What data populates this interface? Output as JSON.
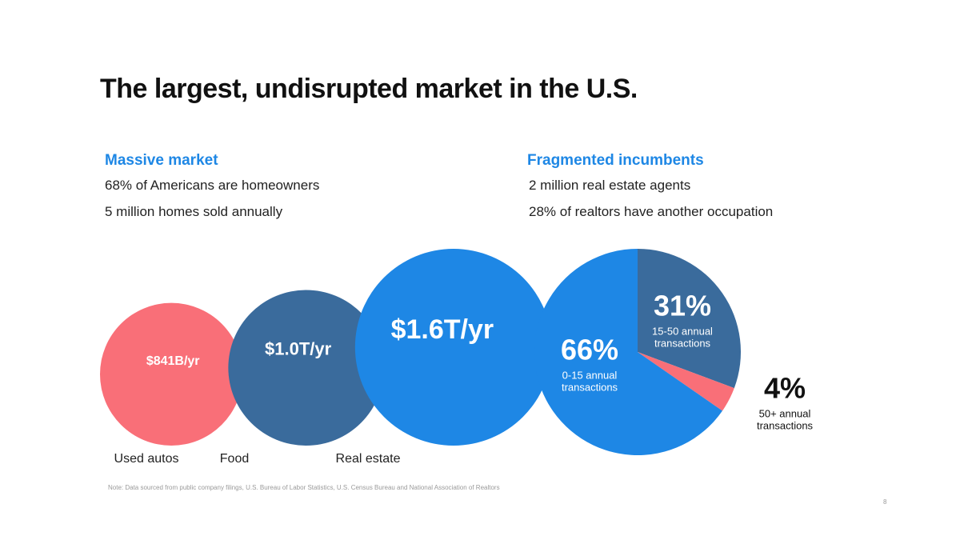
{
  "slide": {
    "title": "The largest, undisrupted market in the U.S.",
    "footnote": "Note:  Data sourced from public company filings, U.S. Bureau of Labor Statistics, U.S. Census Bureau and National Association of Realtors",
    "page_number": "8"
  },
  "left_section": {
    "heading": "Massive market",
    "stats": [
      "68% of Americans are homeowners",
      "5 million homes sold annually"
    ]
  },
  "right_section": {
    "heading": "Fragmented incumbents",
    "stats": [
      "2 million real estate agents",
      "28% of realtors have another occupation"
    ]
  },
  "colors": {
    "accent": "#1e87e5",
    "dark_blue": "#3a6b9c",
    "pink": "#f96f78",
    "bright_blue": "#1e87e5"
  },
  "chart_data": [
    {
      "type": "bubble",
      "categories": [
        "Used autos",
        "Food",
        "Real estate"
      ],
      "values": [
        0.841,
        1.0,
        1.6
      ],
      "units": "$T/yr",
      "data_labels": [
        "$841B/yr",
        "$1.0T/yr",
        "$1.6T/yr"
      ],
      "colors": [
        "#f96f78",
        "#3a6b9c",
        "#1e87e5"
      ]
    },
    {
      "type": "pie",
      "categories": [
        "0-15 annual transactions",
        "15-50 annual transactions",
        "50+ annual transactions"
      ],
      "values": [
        66,
        31,
        4
      ],
      "data_labels": [
        "66%",
        "31%",
        "4%"
      ],
      "category_lines": [
        [
          "0-15 annual",
          "transactions"
        ],
        [
          "15-50 annual",
          "transactions"
        ],
        [
          "50+ annual",
          "transactions"
        ]
      ],
      "colors": [
        "#1e87e5",
        "#3a6b9c",
        "#f96f78"
      ]
    }
  ]
}
